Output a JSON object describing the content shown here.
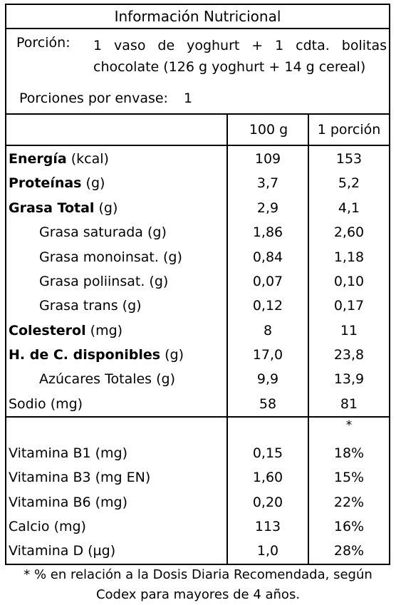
{
  "title": "Información Nutricional",
  "serving": {
    "label": "Porción:",
    "value": "1 vaso de yoghurt + 1 cdta. bolitas chocolate (126 g yoghurt + 14 g cereal)",
    "per_pkg_label": "Porciones por envase:",
    "per_pkg_value": "1"
  },
  "headers": {
    "col1": "100 g",
    "col2": "1 porción"
  },
  "nutrients": [
    {
      "name": "Energía",
      "unit": "(kcal)",
      "bold": true,
      "indent": false,
      "per100": "109",
      "portion": "153"
    },
    {
      "name": "Proteínas",
      "unit": "(g)",
      "bold": true,
      "indent": false,
      "per100": "3,7",
      "portion": "5,2"
    },
    {
      "name": "Grasa Total",
      "unit": "(g)",
      "bold": true,
      "indent": false,
      "per100": "2,9",
      "portion": "4,1"
    },
    {
      "name": "Grasa saturada",
      "unit": "(g)",
      "bold": false,
      "indent": true,
      "per100": "1,86",
      "portion": "2,60"
    },
    {
      "name": "Grasa monoinsat.",
      "unit": "(g)",
      "bold": false,
      "indent": true,
      "per100": "0,84",
      "portion": "1,18"
    },
    {
      "name": "Grasa poliinsat.",
      "unit": "(g)",
      "bold": false,
      "indent": true,
      "per100": "0,07",
      "portion": "0,10"
    },
    {
      "name": "Grasa trans",
      "unit": "(g)",
      "bold": false,
      "indent": true,
      "per100": "0,12",
      "portion": "0,17"
    },
    {
      "name": "Colesterol",
      "unit": "(mg)",
      "bold": true,
      "indent": false,
      "per100": "8",
      "portion": "11"
    },
    {
      "name": "H. de C. disponibles",
      "unit": "(g)",
      "bold": true,
      "indent": false,
      "per100": "17,0",
      "portion": "23,8"
    },
    {
      "name": "Azúcares Totales",
      "unit": "(g)",
      "bold": false,
      "indent": true,
      "per100": "9,9",
      "portion": "13,9"
    },
    {
      "name": "Sodio",
      "unit": "(mg)",
      "bold": false,
      "indent": false,
      "per100": "58",
      "portion": "81"
    }
  ],
  "vitamins_marker": "*",
  "vitamins": [
    {
      "name": "Vitamina B1 (mg)",
      "per100": "0,15",
      "portion": "18%"
    },
    {
      "name": "Vitamina B3 (mg EN)",
      "per100": "1,60",
      "portion": "15%"
    },
    {
      "name": "Vitamina B6 (mg)",
      "per100": "0,20",
      "portion": "22%"
    },
    {
      "name": "Calcio (mg)",
      "per100": "113",
      "portion": "16%"
    },
    {
      "name": "Vitamina D (µg)",
      "per100": "1,0",
      "portion": "28%"
    }
  ],
  "footnote": {
    "line1": "* % en relación a la Dosis Diaria Recomendada, según",
    "line2": "Codex para mayores de 4 años."
  }
}
